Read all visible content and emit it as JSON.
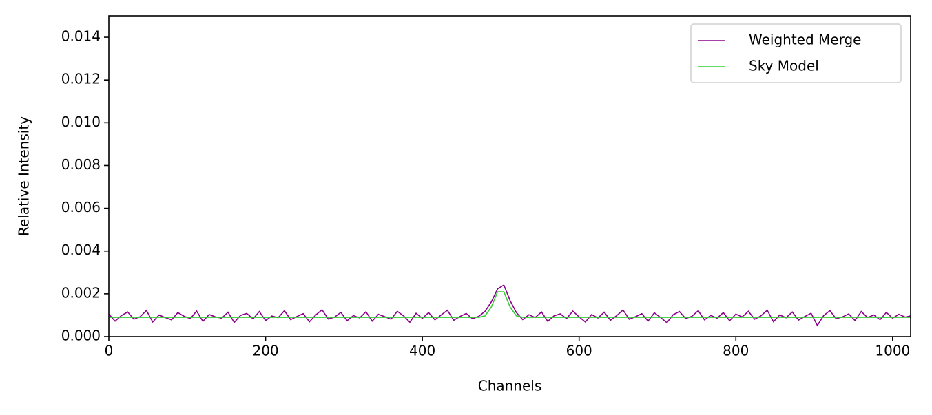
{
  "chart_data": {
    "type": "line",
    "xlabel": "Channels",
    "ylabel": "Relative Intensity",
    "xlim": [
      0,
      1023
    ],
    "ylim": [
      0,
      0.015
    ],
    "xticks": [
      0,
      200,
      400,
      600,
      800,
      1000
    ],
    "yticks": [
      {
        "value": 0,
        "label": "0.000"
      },
      {
        "value": 0.002,
        "label": "0.002"
      },
      {
        "value": 0.004,
        "label": "0.004"
      },
      {
        "value": 0.006,
        "label": "0.006"
      },
      {
        "value": 0.008,
        "label": "0.008"
      },
      {
        "value": 0.01,
        "label": "0.010"
      },
      {
        "value": 0.012,
        "label": "0.012"
      },
      {
        "value": 0.014,
        "label": "0.014"
      }
    ],
    "legend": "upper right",
    "x": [
      0,
      8,
      16,
      24,
      32,
      40,
      48,
      56,
      64,
      72,
      80,
      88,
      96,
      104,
      112,
      120,
      128,
      136,
      144,
      152,
      160,
      168,
      176,
      184,
      192,
      200,
      208,
      216,
      224,
      232,
      240,
      248,
      256,
      264,
      272,
      280,
      288,
      296,
      304,
      312,
      320,
      328,
      336,
      344,
      352,
      360,
      368,
      376,
      384,
      392,
      400,
      408,
      416,
      424,
      432,
      440,
      448,
      456,
      464,
      472,
      480,
      488,
      496,
      504,
      512,
      520,
      528,
      536,
      544,
      552,
      560,
      568,
      576,
      584,
      592,
      600,
      608,
      616,
      624,
      632,
      640,
      648,
      656,
      664,
      672,
      680,
      688,
      696,
      704,
      712,
      720,
      728,
      736,
      744,
      752,
      760,
      768,
      776,
      784,
      792,
      800,
      808,
      816,
      824,
      832,
      840,
      848,
      856,
      864,
      872,
      880,
      888,
      896,
      904,
      912,
      920,
      928,
      936,
      944,
      952,
      960,
      968,
      976,
      984,
      992,
      1000,
      1008,
      1016,
      1023
    ],
    "series": [
      {
        "name": "Weighted Merge",
        "color": "#8b008b",
        "values": [
          0.00105,
          0.00072,
          0.00098,
          0.00115,
          0.00081,
          0.00093,
          0.00122,
          0.00068,
          0.00101,
          0.00089,
          0.00078,
          0.00112,
          0.00095,
          0.00084,
          0.00119,
          0.00071,
          0.00103,
          0.00092,
          0.00086,
          0.00114,
          0.00066,
          0.00099,
          0.00108,
          0.00083,
          0.00117,
          0.00075,
          0.00096,
          0.00088,
          0.00121,
          0.00079,
          0.00094,
          0.00107,
          0.00069,
          0.00101,
          0.00125,
          0.00082,
          0.00091,
          0.00113,
          0.00074,
          0.00098,
          0.00087,
          0.00116,
          0.00072,
          0.00104,
          0.00093,
          0.00081,
          0.00118,
          0.00097,
          0.00067,
          0.00109,
          0.00085,
          0.00112,
          0.00078,
          0.00101,
          0.00123,
          0.00076,
          0.00094,
          0.00108,
          0.00083,
          0.00095,
          0.00118,
          0.00162,
          0.00223,
          0.00241,
          0.00168,
          0.00112,
          0.00079,
          0.00102,
          0.00089,
          0.00115,
          0.00071,
          0.00097,
          0.00106,
          0.00084,
          0.00119,
          0.00092,
          0.00068,
          0.00103,
          0.00087,
          0.00114,
          0.00076,
          0.00098,
          0.00124,
          0.00081,
          0.00093,
          0.00107,
          0.00072,
          0.00111,
          0.00089,
          0.00065,
          0.00102,
          0.00117,
          0.00084,
          0.00095,
          0.00121,
          0.00078,
          0.00099,
          0.00086,
          0.00112,
          0.00074,
          0.00105,
          0.00092,
          0.00118,
          0.00081,
          0.00097,
          0.00123,
          0.00069,
          0.00101,
          0.00088,
          0.00115,
          0.00077,
          0.00094,
          0.00109,
          0.00052,
          0.00098,
          0.00121,
          0.00083,
          0.00092,
          0.00106,
          0.00075,
          0.00117,
          0.00089,
          0.00101,
          0.00079,
          0.00113,
          0.00086,
          0.00104,
          0.00091,
          0.00097
        ]
      },
      {
        "name": "Sky Model",
        "color": "#32cd32",
        "values": [
          0.0009,
          0.0009,
          0.0009,
          0.0009,
          0.0009,
          0.0009,
          0.0009,
          0.0009,
          0.0009,
          0.0009,
          0.0009,
          0.0009,
          0.0009,
          0.0009,
          0.0009,
          0.0009,
          0.0009,
          0.0009,
          0.0009,
          0.0009,
          0.0009,
          0.0009,
          0.0009,
          0.0009,
          0.0009,
          0.0009,
          0.0009,
          0.0009,
          0.0009,
          0.0009,
          0.0009,
          0.0009,
          0.0009,
          0.0009,
          0.0009,
          0.0009,
          0.0009,
          0.0009,
          0.0009,
          0.0009,
          0.0009,
          0.0009,
          0.0009,
          0.0009,
          0.0009,
          0.0009,
          0.0009,
          0.0009,
          0.0009,
          0.0009,
          0.0009,
          0.0009,
          0.0009,
          0.0009,
          0.0009,
          0.0009,
          0.0009,
          0.0009,
          0.0009,
          0.0009,
          0.00097,
          0.00138,
          0.00209,
          0.00209,
          0.00138,
          0.00097,
          0.0009,
          0.0009,
          0.0009,
          0.0009,
          0.0009,
          0.0009,
          0.0009,
          0.0009,
          0.0009,
          0.0009,
          0.0009,
          0.0009,
          0.0009,
          0.0009,
          0.0009,
          0.0009,
          0.0009,
          0.0009,
          0.0009,
          0.0009,
          0.0009,
          0.0009,
          0.0009,
          0.0009,
          0.0009,
          0.0009,
          0.0009,
          0.0009,
          0.0009,
          0.0009,
          0.0009,
          0.0009,
          0.0009,
          0.0009,
          0.0009,
          0.0009,
          0.0009,
          0.0009,
          0.0009,
          0.0009,
          0.0009,
          0.0009,
          0.0009,
          0.0009,
          0.0009,
          0.0009,
          0.0009,
          0.0009,
          0.0009,
          0.0009,
          0.0009,
          0.0009,
          0.0009,
          0.0009,
          0.0009,
          0.0009,
          0.0009,
          0.0009,
          0.0009,
          0.0009,
          0.0009,
          0.0009,
          0.0009
        ]
      }
    ]
  }
}
